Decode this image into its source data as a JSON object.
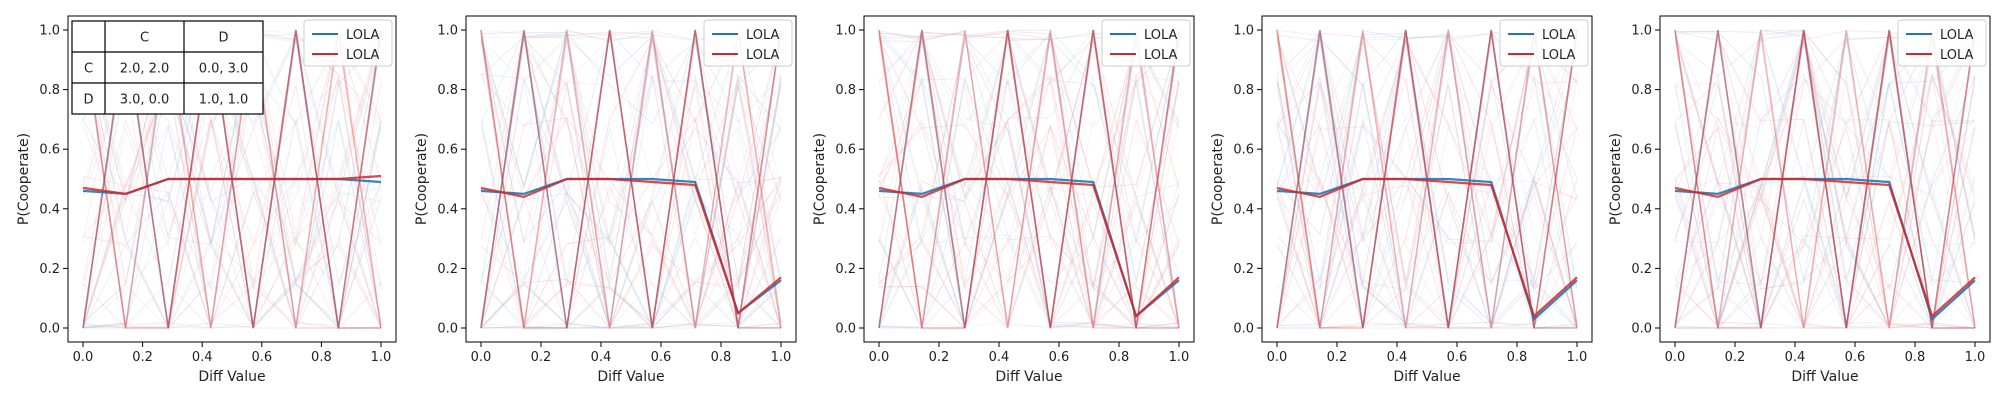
{
  "xlabel": "Diff Value",
  "ylabel": "P(Cooperate)",
  "xticks": [
    "0.0",
    "0.2",
    "0.4",
    "0.6",
    "0.8",
    "1.0"
  ],
  "yticks": [
    "0.0",
    "0.2",
    "0.4",
    "0.6",
    "0.8",
    "1.0"
  ],
  "legend": [
    "LOLA",
    "LOLA"
  ],
  "colors": {
    "blue": "#1f77b4",
    "red": "#d62728",
    "faint_blue": "#aec7e8",
    "faint_red": "#f4a9aa",
    "overlap": "#8e3a4f"
  },
  "payoff_table": {
    "header": [
      "",
      "C",
      "D"
    ],
    "rows": [
      [
        "C",
        "2.0, 2.0",
        "0.0, 3.0"
      ],
      [
        "D",
        "3.0, 0.0",
        "1.0, 1.0"
      ]
    ]
  },
  "chart_data": [
    {
      "type": "line",
      "x": [
        0.0,
        0.143,
        0.286,
        0.429,
        0.571,
        0.714,
        0.857,
        1.0
      ],
      "xlim": [
        0,
        1
      ],
      "ylim": [
        0,
        1
      ],
      "xlabel": "Diff Value",
      "ylabel": "P(Cooperate)",
      "legend": "top-right",
      "grid": false,
      "series": [
        {
          "name": "LOLA",
          "color": "blue",
          "values": [
            0.46,
            0.45,
            0.5,
            0.5,
            0.5,
            0.5,
            0.5,
            0.49
          ]
        },
        {
          "name": "LOLA",
          "color": "red",
          "values": [
            0.47,
            0.45,
            0.5,
            0.5,
            0.5,
            0.5,
            0.5,
            0.51
          ]
        }
      ]
    },
    {
      "type": "line",
      "x": [
        0.0,
        0.143,
        0.286,
        0.429,
        0.571,
        0.714,
        0.857,
        1.0
      ],
      "xlim": [
        0,
        1
      ],
      "ylim": [
        0,
        1
      ],
      "xlabel": "Diff Value",
      "ylabel": "P(Cooperate)",
      "legend": "top-right",
      "grid": false,
      "series": [
        {
          "name": "LOLA",
          "color": "blue",
          "values": [
            0.46,
            0.45,
            0.5,
            0.5,
            0.5,
            0.49,
            0.05,
            0.16
          ]
        },
        {
          "name": "LOLA",
          "color": "red",
          "values": [
            0.47,
            0.44,
            0.5,
            0.5,
            0.49,
            0.48,
            0.05,
            0.17
          ]
        }
      ]
    },
    {
      "type": "line",
      "x": [
        0.0,
        0.143,
        0.286,
        0.429,
        0.571,
        0.714,
        0.857,
        1.0
      ],
      "xlim": [
        0,
        1
      ],
      "ylim": [
        0,
        1
      ],
      "xlabel": "Diff Value",
      "ylabel": "P(Cooperate)",
      "legend": "top-right",
      "grid": false,
      "series": [
        {
          "name": "LOLA",
          "color": "blue",
          "values": [
            0.46,
            0.45,
            0.5,
            0.5,
            0.5,
            0.49,
            0.04,
            0.16
          ]
        },
        {
          "name": "LOLA",
          "color": "red",
          "values": [
            0.47,
            0.44,
            0.5,
            0.5,
            0.49,
            0.48,
            0.04,
            0.17
          ]
        }
      ]
    },
    {
      "type": "line",
      "x": [
        0.0,
        0.143,
        0.286,
        0.429,
        0.571,
        0.714,
        0.857,
        1.0
      ],
      "xlim": [
        0,
        1
      ],
      "ylim": [
        0,
        1
      ],
      "xlabel": "Diff Value",
      "ylabel": "P(Cooperate)",
      "legend": "top-right",
      "grid": false,
      "series": [
        {
          "name": "LOLA",
          "color": "blue",
          "values": [
            0.46,
            0.45,
            0.5,
            0.5,
            0.5,
            0.49,
            0.03,
            0.16
          ]
        },
        {
          "name": "LOLA",
          "color": "red",
          "values": [
            0.47,
            0.44,
            0.5,
            0.5,
            0.49,
            0.48,
            0.04,
            0.17
          ]
        }
      ]
    },
    {
      "type": "line",
      "x": [
        0.0,
        0.143,
        0.286,
        0.429,
        0.571,
        0.714,
        0.857,
        1.0
      ],
      "xlim": [
        0,
        1
      ],
      "ylim": [
        0,
        1
      ],
      "xlabel": "Diff Value",
      "ylabel": "P(Cooperate)",
      "legend": "top-right",
      "grid": false,
      "series": [
        {
          "name": "LOLA",
          "color": "blue",
          "values": [
            0.46,
            0.45,
            0.5,
            0.5,
            0.5,
            0.49,
            0.03,
            0.16
          ]
        },
        {
          "name": "LOLA",
          "color": "red",
          "values": [
            0.47,
            0.44,
            0.5,
            0.5,
            0.49,
            0.48,
            0.04,
            0.17
          ]
        }
      ]
    }
  ]
}
